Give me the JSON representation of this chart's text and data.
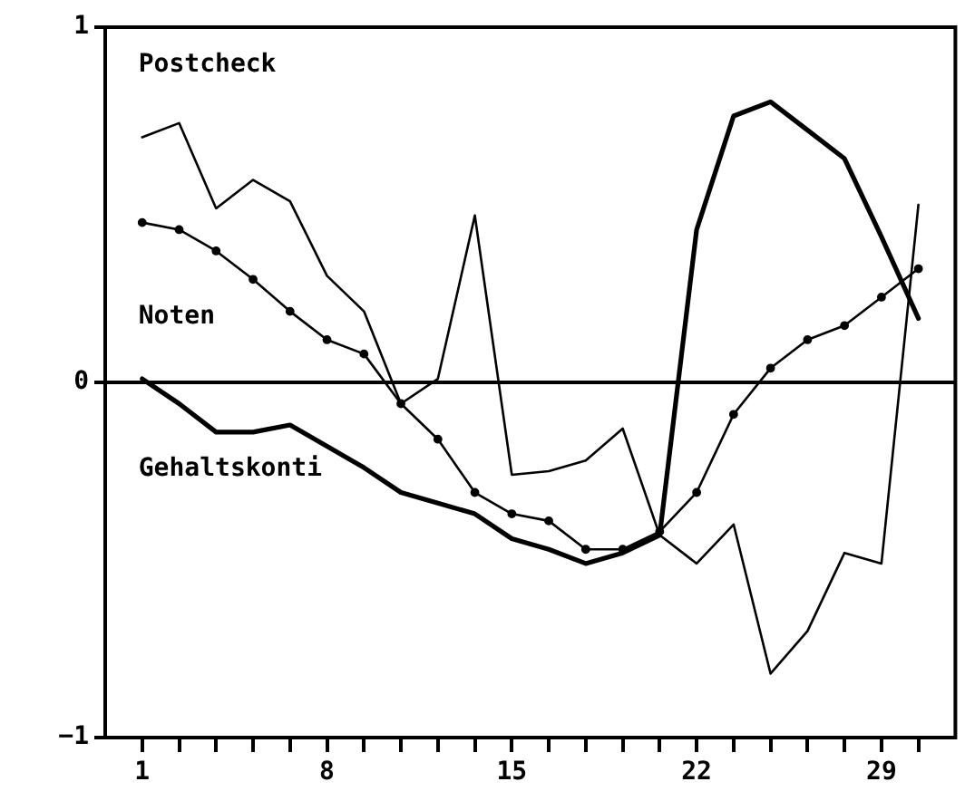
{
  "chart_data": {
    "type": "line",
    "categories": [
      "1",
      null,
      null,
      null,
      null,
      "8",
      null,
      null,
      null,
      null,
      "15",
      null,
      null,
      null,
      null,
      "22",
      null,
      null,
      null,
      null,
      "29",
      null
    ],
    "series": [
      {
        "name": "Postcheck",
        "color": "#000000",
        "marker": "none",
        "values": [
          0.69,
          0.73,
          0.49,
          0.57,
          0.51,
          0.3,
          0.2,
          -0.06,
          0.01,
          0.47,
          -0.26,
          -0.25,
          -0.22,
          -0.13,
          -0.43,
          -0.51,
          -0.4,
          -0.82,
          -0.7,
          -0.48,
          -0.51,
          0.5
        ]
      },
      {
        "name": "Noten",
        "color": "#000000",
        "marker": "circle",
        "values": [
          0.45,
          0.43,
          0.37,
          0.29,
          0.2,
          0.12,
          0.08,
          -0.06,
          -0.16,
          -0.31,
          -0.37,
          -0.39,
          -0.47,
          -0.47,
          -0.42,
          -0.31,
          -0.09,
          0.04,
          0.12,
          0.16,
          0.24,
          0.32
        ]
      },
      {
        "name": "Gehaltskonti",
        "color": "#000000",
        "marker": "none",
        "values": [
          0.01,
          -0.06,
          -0.14,
          -0.14,
          -0.12,
          -0.18,
          -0.24,
          -0.31,
          -0.34,
          -0.37,
          -0.44,
          -0.47,
          -0.51,
          -0.48,
          -0.43,
          0.43,
          0.75,
          0.79,
          0.71,
          0.63,
          0.41,
          0.18
        ]
      }
    ],
    "ylim": [
      -1,
      1
    ],
    "yticks": [
      -1,
      0,
      1
    ],
    "grid": false,
    "legend": false,
    "ref_lines": [
      {
        "axis": "y",
        "value": 0,
        "color": "#000000"
      }
    ]
  }
}
